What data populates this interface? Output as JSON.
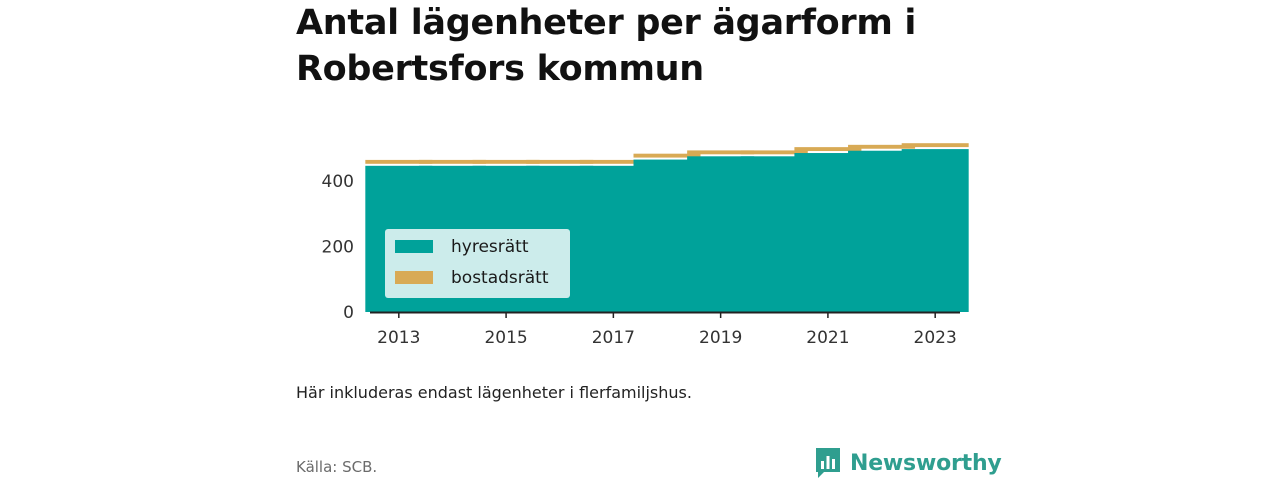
{
  "title_lines": [
    "Antal lägenheter per ägarform i",
    "Robertsfors kommun"
  ],
  "note": "Här inkluderas endast lägenheter i flerfamiljshus.",
  "source": "Källa: SCB.",
  "brand": {
    "name": "Newsworthy",
    "icon": "newsworthy-logo-icon",
    "color": "#2f9e8f"
  },
  "colors": {
    "hyresratt": "#00a29a",
    "bostadsratt": "#d8aa55",
    "grid": "#dddddd",
    "axis": "#222222"
  },
  "chart_data": {
    "type": "bar",
    "stacked": true,
    "title": "Antal lägenheter per ägarform i Robertsfors kommun",
    "categories": [
      "2013",
      "2014",
      "2015",
      "2016",
      "2017",
      "2018",
      "2019",
      "2020",
      "2021",
      "2022",
      "2023"
    ],
    "x_tick_labels": [
      "2013",
      "2015",
      "2017",
      "2019",
      "2021",
      "2023"
    ],
    "y_ticks": [
      0,
      200,
      400
    ],
    "ylim": [
      0,
      540
    ],
    "grid": true,
    "legend_position": "bottom-left",
    "series": [
      {
        "name": "hyresrätt",
        "color": "#00a29a",
        "values": [
          446,
          446,
          446,
          446,
          446,
          465,
          475,
          475,
          485,
          492,
          497
        ]
      },
      {
        "name": "bostadsrätt",
        "color": "#d8aa55",
        "values": [
          18,
          18,
          18,
          18,
          18,
          18,
          18,
          18,
          18,
          18,
          18
        ]
      }
    ]
  }
}
